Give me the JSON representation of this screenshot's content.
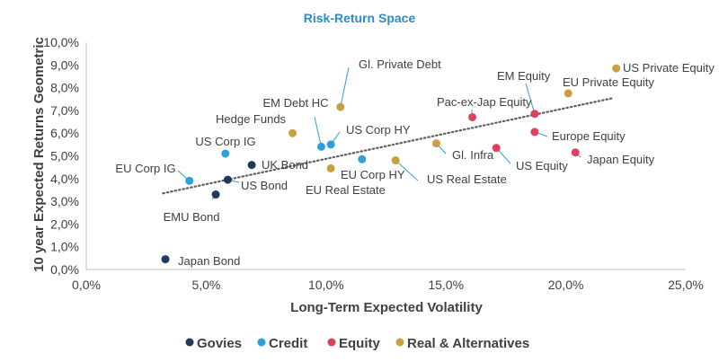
{
  "chart_data": {
    "type": "scatter",
    "title": "Risk-Return Space",
    "xlabel": "Long-Term Expected Volatility",
    "ylabel": "10 year Expected Returns Geometric",
    "xlim": [
      0,
      25
    ],
    "ylim": [
      0,
      10
    ],
    "x_ticks": [
      "0,0%",
      "5,0%",
      "10,0%",
      "15,0%",
      "20,0%",
      "25,0%"
    ],
    "y_ticks": [
      "0,0%",
      "1,0%",
      "2,0%",
      "3,0%",
      "4,0%",
      "5,0%",
      "6,0%",
      "7,0%",
      "8,0%",
      "9,0%",
      "10,0%"
    ],
    "trendline": {
      "style": "dotted",
      "x": [
        3.2,
        22.0
      ],
      "y": [
        3.35,
        7.55
      ]
    },
    "categories": [
      {
        "name": "Govies",
        "color": "#1f3a5a"
      },
      {
        "name": "Credit",
        "color": "#2e9fd8"
      },
      {
        "name": "Equity",
        "color": "#e0405e"
      },
      {
        "name": "Real & Alternatives",
        "color": "#c9a040"
      }
    ],
    "points": [
      {
        "label": "Japan Bond",
        "category": "Govies",
        "x": 3.3,
        "y": 0.45
      },
      {
        "label": "EMU Bond",
        "category": "Govies",
        "x": 5.4,
        "y": 3.3
      },
      {
        "label": "US Bond",
        "category": "Govies",
        "x": 5.9,
        "y": 3.95
      },
      {
        "label": "UK Bond",
        "category": "Govies",
        "x": 6.9,
        "y": 4.6
      },
      {
        "label": "EU Corp IG",
        "category": "Credit",
        "x": 4.3,
        "y": 3.9
      },
      {
        "label": "US Corp IG",
        "category": "Credit",
        "x": 5.8,
        "y": 5.1
      },
      {
        "label": "EM Debt HC",
        "category": "Credit",
        "x": 9.8,
        "y": 5.4
      },
      {
        "label": "US Corp HY",
        "category": "Credit",
        "x": 10.2,
        "y": 5.5
      },
      {
        "label": "EU Corp HY",
        "category": "Credit",
        "x": 11.5,
        "y": 4.85
      },
      {
        "label": "Pac-ex-Jap Equity",
        "category": "Equity",
        "x": 16.1,
        "y": 6.7
      },
      {
        "label": "US Equity",
        "category": "Equity",
        "x": 17.1,
        "y": 5.35
      },
      {
        "label": "EM Equity",
        "category": "Equity",
        "x": 18.7,
        "y": 6.85
      },
      {
        "label": "Europe Equity",
        "category": "Equity",
        "x": 18.7,
        "y": 6.05
      },
      {
        "label": "Japan Equity",
        "category": "Equity",
        "x": 20.4,
        "y": 5.15
      },
      {
        "label": "Hedge Funds",
        "category": "Real & Alternatives",
        "x": 8.6,
        "y": 6.0
      },
      {
        "label": "Gl. Private Debt",
        "category": "Real & Alternatives",
        "x": 10.6,
        "y": 7.15
      },
      {
        "label": "EU Real Estate",
        "category": "Real & Alternatives",
        "x": 10.2,
        "y": 4.45
      },
      {
        "label": "US Real Estate",
        "category": "Real & Alternatives",
        "x": 12.9,
        "y": 4.8
      },
      {
        "label": "Gl. Infra",
        "category": "Real & Alternatives",
        "x": 14.6,
        "y": 5.55
      },
      {
        "label": "EU Private Equity",
        "category": "Real & Alternatives",
        "x": 20.1,
        "y": 7.75
      },
      {
        "label": "US Private Equity",
        "category": "Real & Alternatives",
        "x": 22.1,
        "y": 8.85
      }
    ]
  }
}
